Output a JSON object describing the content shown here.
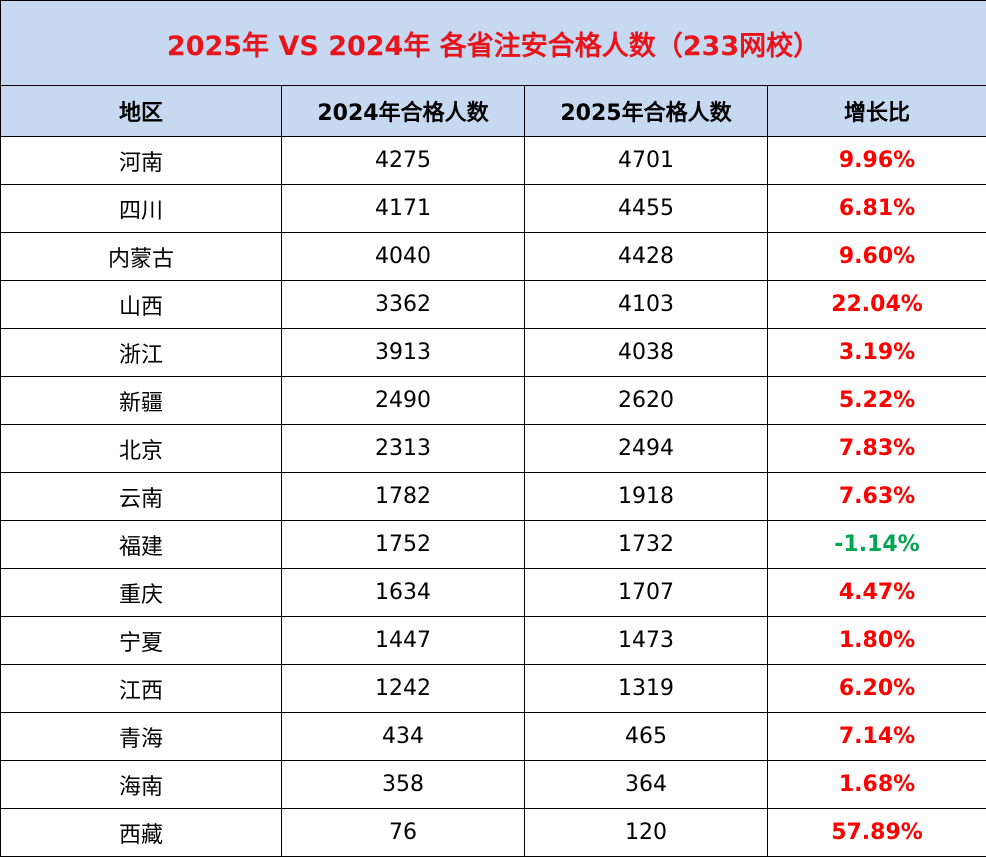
{
  "title": "2025年 VS 2024年  各省注安合格人数（233网校）",
  "table": {
    "header": [
      "地区",
      "2024年合格人数",
      "2025年合格人数",
      "增长比"
    ],
    "rows": [
      [
        "河南",
        "4275",
        "4701",
        "9.96%"
      ],
      [
        "四川",
        "4171",
        "4455",
        "6.81%"
      ],
      [
        "内蒙古",
        "4040",
        "4428",
        "9.60%"
      ],
      [
        "山西",
        "3362",
        "4103",
        "22.04%"
      ],
      [
        "浙江",
        "3913",
        "4038",
        "3.19%"
      ],
      [
        "新疆",
        "2490",
        "2620",
        "5.22%"
      ],
      [
        "北京",
        "2313",
        "2494",
        "7.83%"
      ],
      [
        "云南",
        "1782",
        "1918",
        "7.63%"
      ],
      [
        "福建",
        "1752",
        "1732",
        "-1.14%"
      ],
      [
        "重庆",
        "1634",
        "1707",
        "4.47%"
      ],
      [
        "宁夏",
        "1447",
        "1473",
        "1.80%"
      ],
      [
        "江西",
        "1242",
        "1319",
        "6.20%"
      ],
      [
        "青海",
        "434",
        "465",
        "7.14%"
      ],
      [
        "海南",
        "358",
        "364",
        "1.68%"
      ],
      [
        "西藏",
        "76",
        "120",
        "57.89%"
      ]
    ]
  }
}
